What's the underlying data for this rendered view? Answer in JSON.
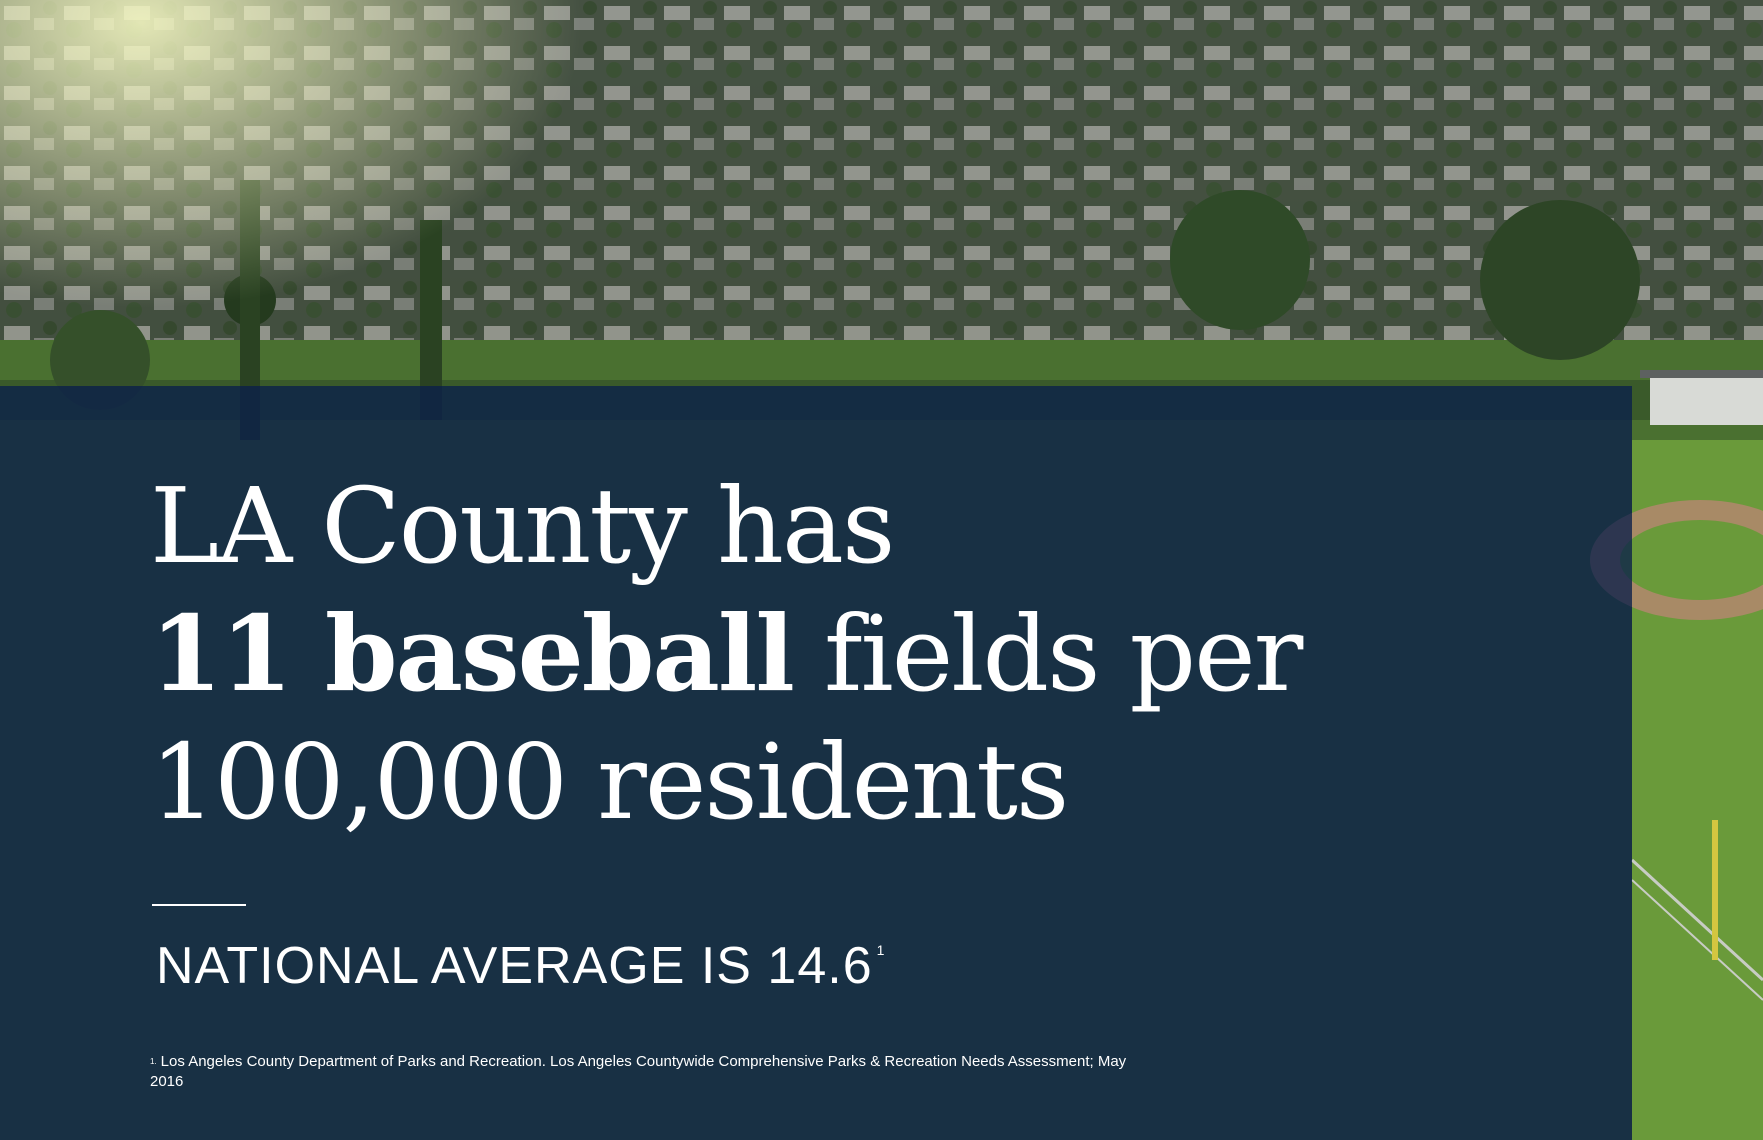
{
  "headline": {
    "line1": "LA County has",
    "line2_bold": "11 baseball",
    "line2_rest": " fields per",
    "line3": "100,000 residents"
  },
  "subline": {
    "text": "NATIONAL AVERAGE IS 14.6",
    "footnote_ref": "1"
  },
  "footnote": {
    "mark": "1.",
    "text": "Los Angeles County Department of Parks and Recreation. Los Angeles Countywide Comprehensive Parks & Recreation Needs Assessment; May 2016"
  },
  "colors": {
    "overlay": "#0a1f4a",
    "text": "#ffffff",
    "grass": "#4e7a2c",
    "infield": "#a88a66"
  }
}
